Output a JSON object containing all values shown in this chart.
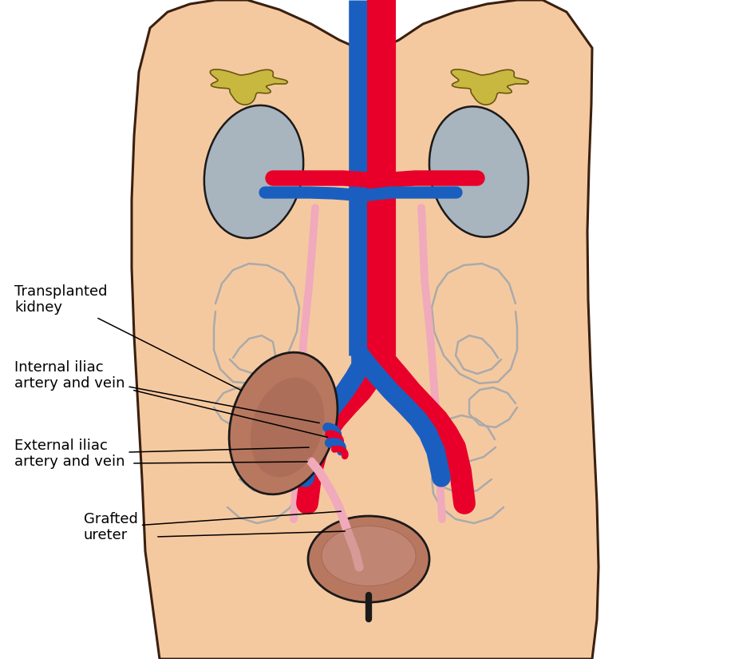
{
  "bg_body_color": "#F5C9A0",
  "bg_white": "#FFFFFF",
  "artery_color": "#E8002A",
  "vein_color": "#1A5FBF",
  "ureter_color": "#F0AABB",
  "kidney_native_color": "#A8B4BE",
  "kidney_transplant_color": "#B87860",
  "adrenal_color": "#C8B840",
  "bladder_color": "#B87860",
  "outline_color": "#1A1A1A",
  "body_outline_color": "#3A2010",
  "pelvis_outline": "#AAAAAA",
  "annotation_color": "#000000",
  "font_size": 13,
  "labels": {
    "transplanted_kidney": "Transplanted\nkidney",
    "internal_iliac": "Internal iliac\nartery and vein",
    "external_iliac": "External iliac\nartery and vein",
    "grafted_ureter": "Grafted\nureter"
  }
}
